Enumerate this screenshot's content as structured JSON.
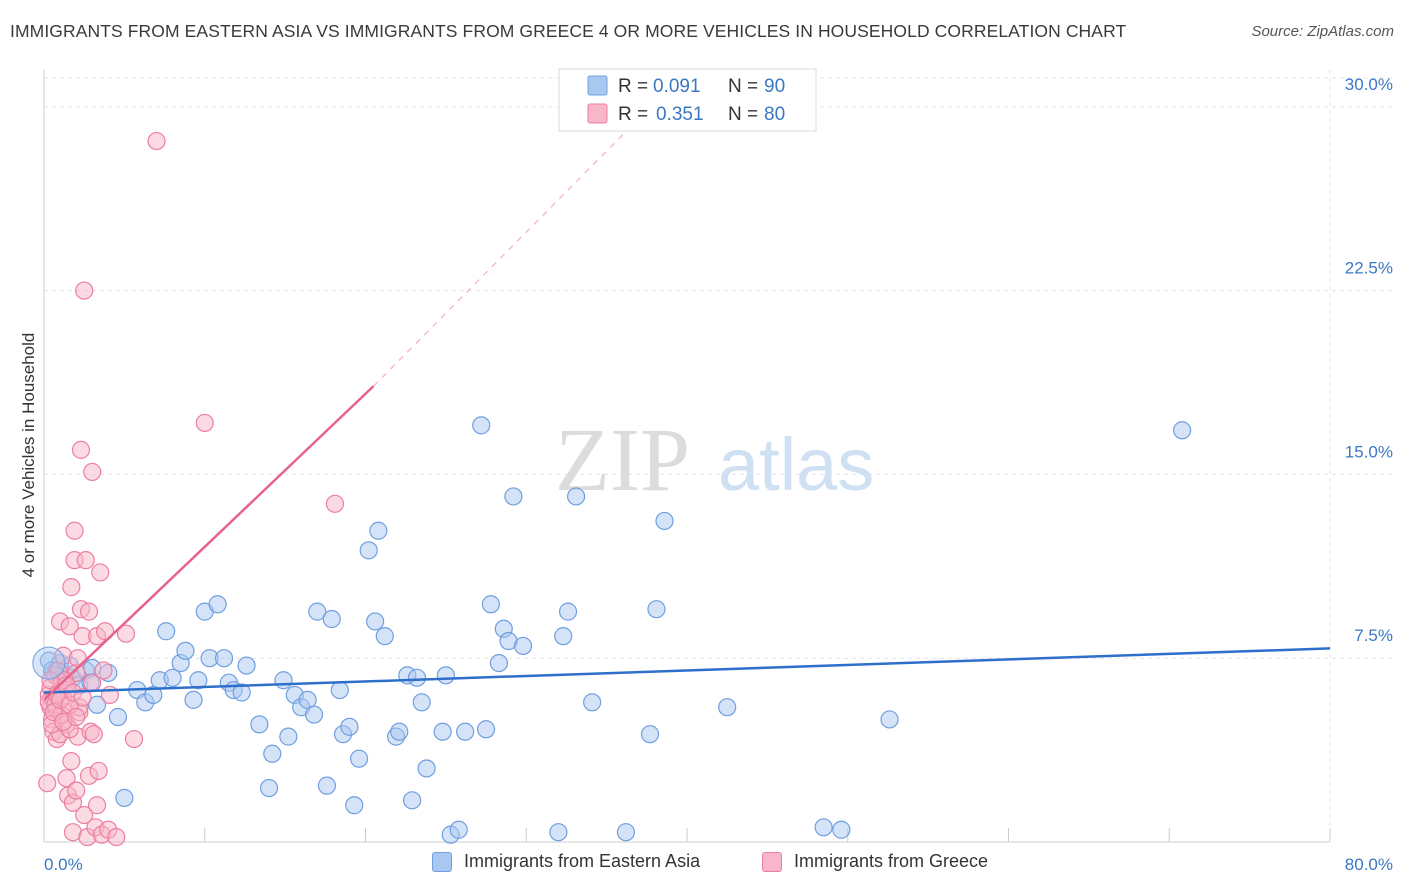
{
  "title": "IMMIGRANTS FROM EASTERN ASIA VS IMMIGRANTS FROM GREECE 4 OR MORE VEHICLES IN HOUSEHOLD CORRELATION CHART",
  "source": "Source: ZipAtlas.com",
  "watermark": {
    "zip": "ZIP",
    "atlas": "atlas"
  },
  "colors": {
    "blue_fill": "#a9c8f0",
    "blue_stroke": "#6f9fe0",
    "blue_line": "#2f6fcc",
    "pink_fill": "#f7b6c9",
    "pink_stroke": "#ec7fa0",
    "pink_line": "#e8638c",
    "tick_text": "#3b78c4",
    "grid": "#e3e3e3"
  },
  "legend": {
    "rows": [
      {
        "r_label": "R =",
        "r_value": "0.091",
        "n_label": "N =",
        "n_value": "90",
        "color": "blue"
      },
      {
        "r_label": "R =",
        "r_value": "0.351",
        "n_label": "N =",
        "n_value": "80",
        "color": "pink"
      }
    ]
  },
  "chart_data": {
    "type": "scatter",
    "ylabel": "4 or more Vehicles in Household",
    "xlim": [
      0,
      80
    ],
    "ylim": [
      0,
      31.5
    ],
    "x_tick_labels": [
      "0.0%",
      "80.0%"
    ],
    "y_ticks": [
      7.5,
      15.0,
      22.5,
      30.0
    ],
    "y_tick_labels": [
      "7.5%",
      "15.0%",
      "22.5%",
      "30.0%"
    ],
    "grid": true,
    "series": [
      {
        "name": "Immigrants from Eastern Asia",
        "color": "blue",
        "r": 0.091,
        "n": 90,
        "trend": {
          "x": [
            0,
            80
          ],
          "y": [
            6.1,
            7.9
          ],
          "style": "solid"
        },
        "points": [
          [
            0.3,
            7.4
          ],
          [
            0.6,
            6.9
          ],
          [
            0.8,
            7.0
          ],
          [
            1.0,
            7.3
          ],
          [
            1.2,
            6.6
          ],
          [
            1.4,
            6.8
          ],
          [
            1.8,
            6.7
          ],
          [
            2.2,
            6.4
          ],
          [
            2.6,
            7.0
          ],
          [
            3.0,
            7.1
          ],
          [
            3.3,
            5.6
          ],
          [
            4.0,
            6.9
          ],
          [
            4.6,
            5.1
          ],
          [
            5.0,
            1.8
          ],
          [
            5.8,
            6.2
          ],
          [
            6.3,
            5.7
          ],
          [
            6.8,
            6.0
          ],
          [
            7.2,
            6.6
          ],
          [
            7.6,
            8.6
          ],
          [
            8.0,
            6.7
          ],
          [
            8.5,
            7.3
          ],
          [
            8.8,
            7.8
          ],
          [
            9.3,
            5.8
          ],
          [
            9.6,
            6.6
          ],
          [
            10.0,
            9.4
          ],
          [
            10.3,
            7.5
          ],
          [
            10.8,
            9.7
          ],
          [
            11.2,
            7.5
          ],
          [
            11.5,
            6.5
          ],
          [
            11.8,
            6.2
          ],
          [
            12.3,
            6.1
          ],
          [
            12.6,
            7.2
          ],
          [
            13.4,
            4.8
          ],
          [
            14.0,
            2.2
          ],
          [
            14.2,
            3.6
          ],
          [
            14.9,
            6.6
          ],
          [
            15.2,
            4.3
          ],
          [
            15.6,
            6.0
          ],
          [
            16.0,
            5.5
          ],
          [
            16.4,
            5.8
          ],
          [
            16.8,
            5.2
          ],
          [
            17.0,
            9.4
          ],
          [
            17.6,
            2.3
          ],
          [
            17.9,
            9.1
          ],
          [
            18.4,
            6.2
          ],
          [
            18.6,
            4.4
          ],
          [
            19.0,
            4.7
          ],
          [
            19.3,
            1.5
          ],
          [
            19.6,
            3.4
          ],
          [
            20.2,
            11.9
          ],
          [
            20.6,
            9.0
          ],
          [
            20.8,
            12.7
          ],
          [
            21.2,
            8.4
          ],
          [
            21.9,
            4.3
          ],
          [
            22.1,
            4.5
          ],
          [
            22.6,
            6.8
          ],
          [
            22.9,
            1.7
          ],
          [
            23.2,
            6.7
          ],
          [
            23.5,
            5.7
          ],
          [
            23.8,
            3.0
          ],
          [
            24.8,
            4.5
          ],
          [
            25.0,
            6.8
          ],
          [
            25.3,
            0.3
          ],
          [
            25.8,
            0.5
          ],
          [
            26.2,
            4.5
          ],
          [
            27.2,
            17.0
          ],
          [
            27.5,
            4.6
          ],
          [
            27.8,
            9.7
          ],
          [
            28.3,
            7.3
          ],
          [
            28.6,
            8.7
          ],
          [
            28.9,
            8.2
          ],
          [
            29.2,
            14.1
          ],
          [
            29.8,
            8.0
          ],
          [
            32.0,
            0.4
          ],
          [
            32.3,
            8.4
          ],
          [
            32.6,
            9.4
          ],
          [
            33.1,
            14.1
          ],
          [
            34.1,
            5.7
          ],
          [
            36.2,
            0.4
          ],
          [
            37.7,
            4.4
          ],
          [
            38.1,
            9.5
          ],
          [
            38.6,
            13.1
          ],
          [
            42.5,
            5.5
          ],
          [
            48.5,
            0.6
          ],
          [
            49.6,
            0.5
          ],
          [
            52.6,
            5.0
          ],
          [
            70.8,
            16.8
          ],
          [
            0.5,
            7.0
          ],
          [
            1.6,
            7.2
          ],
          [
            2.9,
            6.5
          ]
        ]
      },
      {
        "name": "Immigrants from Greece",
        "color": "pink",
        "r": 0.351,
        "n": 80,
        "trend": {
          "x": [
            0,
            20.5
          ],
          "y": [
            5.8,
            18.6
          ],
          "style": "solid",
          "dash_to": [
            40,
            31.5
          ]
        },
        "points": [
          [
            0.2,
            2.4
          ],
          [
            0.3,
            6.0
          ],
          [
            0.4,
            5.5
          ],
          [
            0.4,
            6.3
          ],
          [
            0.5,
            5.0
          ],
          [
            0.6,
            4.5
          ],
          [
            0.6,
            5.8
          ],
          [
            0.7,
            6.8
          ],
          [
            0.8,
            4.2
          ],
          [
            0.8,
            5.4
          ],
          [
            0.9,
            7.0
          ],
          [
            1.0,
            9.0
          ],
          [
            1.0,
            4.4
          ],
          [
            1.1,
            6.5
          ],
          [
            1.2,
            5.9
          ],
          [
            1.2,
            7.6
          ],
          [
            1.3,
            5.3
          ],
          [
            1.4,
            4.8
          ],
          [
            1.4,
            2.6
          ],
          [
            1.5,
            1.9
          ],
          [
            1.5,
            6.2
          ],
          [
            1.6,
            8.8
          ],
          [
            1.7,
            3.3
          ],
          [
            1.7,
            10.4
          ],
          [
            1.8,
            1.6
          ],
          [
            1.8,
            0.4
          ],
          [
            1.9,
            12.7
          ],
          [
            1.9,
            11.5
          ],
          [
            2.0,
            2.1
          ],
          [
            2.0,
            6.9
          ],
          [
            2.1,
            4.3
          ],
          [
            2.1,
            7.5
          ],
          [
            2.2,
            5.3
          ],
          [
            2.3,
            9.5
          ],
          [
            2.3,
            16.0
          ],
          [
            2.4,
            8.4
          ],
          [
            2.5,
            1.1
          ],
          [
            2.5,
            22.5
          ],
          [
            2.6,
            11.5
          ],
          [
            2.7,
            0.2
          ],
          [
            2.8,
            9.4
          ],
          [
            2.8,
            2.7
          ],
          [
            2.9,
            4.5
          ],
          [
            3.0,
            15.1
          ],
          [
            3.0,
            6.5
          ],
          [
            3.1,
            4.4
          ],
          [
            3.2,
            0.6
          ],
          [
            3.3,
            1.5
          ],
          [
            3.3,
            8.4
          ],
          [
            3.4,
            2.9
          ],
          [
            3.5,
            11.0
          ],
          [
            3.6,
            0.3
          ],
          [
            3.7,
            7.0
          ],
          [
            3.8,
            8.6
          ],
          [
            4.0,
            0.5
          ],
          [
            4.1,
            6.0
          ],
          [
            4.5,
            0.2
          ],
          [
            5.1,
            8.5
          ],
          [
            5.6,
            4.2
          ],
          [
            7.0,
            28.6
          ],
          [
            10.0,
            17.1
          ],
          [
            18.1,
            13.8
          ],
          [
            0.3,
            5.7
          ],
          [
            0.5,
            4.8
          ],
          [
            0.7,
            5.6
          ],
          [
            0.9,
            6.1
          ],
          [
            1.1,
            5.2
          ],
          [
            1.3,
            6.6
          ],
          [
            1.6,
            4.6
          ],
          [
            2.2,
            5.5
          ],
          [
            0.4,
            6.6
          ],
          [
            0.6,
            5.3
          ],
          [
            0.8,
            6.0
          ],
          [
            1.0,
            5.8
          ],
          [
            1.2,
            4.9
          ],
          [
            1.4,
            6.4
          ],
          [
            1.6,
            5.6
          ],
          [
            1.8,
            6.1
          ],
          [
            2.0,
            5.1
          ],
          [
            2.4,
            5.9
          ]
        ]
      }
    ]
  },
  "bottom_legend": {
    "items": [
      "Immigrants from Eastern Asia",
      "Immigrants from Greece"
    ]
  }
}
